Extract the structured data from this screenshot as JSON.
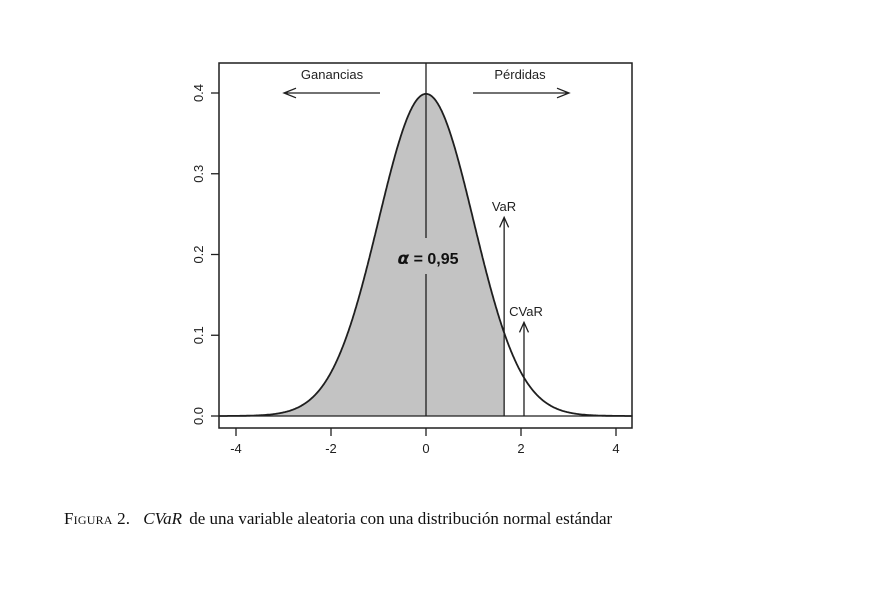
{
  "page": {
    "background": "#ffffff"
  },
  "figure": {
    "caption": {
      "figure_label": "Figura 2.",
      "term": "CVaR",
      "rest": "de una variable aleatoria con una distribución normal estándar"
    }
  },
  "chart_data": {
    "type": "area",
    "title": "",
    "xlabel": "",
    "ylabel": "",
    "xlim": [
      -4.35,
      4.35
    ],
    "ylim": [
      -0.016,
      0.437
    ],
    "grid": false,
    "curve": {
      "distribution": "normal",
      "mean": 0,
      "sd": 1,
      "x_min": -4.35,
      "x_max": 4.35,
      "peak_density": 0.3989
    },
    "x_ticks": [
      -4,
      -2,
      0,
      2,
      4
    ],
    "x_tick_labels": [
      "-4",
      "-2",
      "0",
      "2",
      "4"
    ],
    "y_ticks": [
      0,
      0.1,
      0.2,
      0.3,
      0.4
    ],
    "y_tick_labels": [
      "0.0",
      "0.1",
      "0.2",
      "0.3",
      "0.4"
    ],
    "shaded_region": {
      "x_from": -4.35,
      "x_to": 1.645,
      "fill": "#c3c3c3",
      "alpha_symbol": "α",
      "alpha_value": " = 0,95",
      "label": "α = 0,95"
    },
    "center_line_x": 0,
    "zero_line": true,
    "markers": [
      {
        "name": "VaR",
        "x": 1.645,
        "arrow_top_density": 0.246
      },
      {
        "name": "CVaR",
        "x": 2.063,
        "arrow_top_density": 0.116
      }
    ],
    "direction_labels": [
      {
        "text": "Ganancias",
        "direction": "left"
      },
      {
        "text": "Pérdidas",
        "direction": "right"
      }
    ],
    "line_color": "#1f1f1f"
  }
}
